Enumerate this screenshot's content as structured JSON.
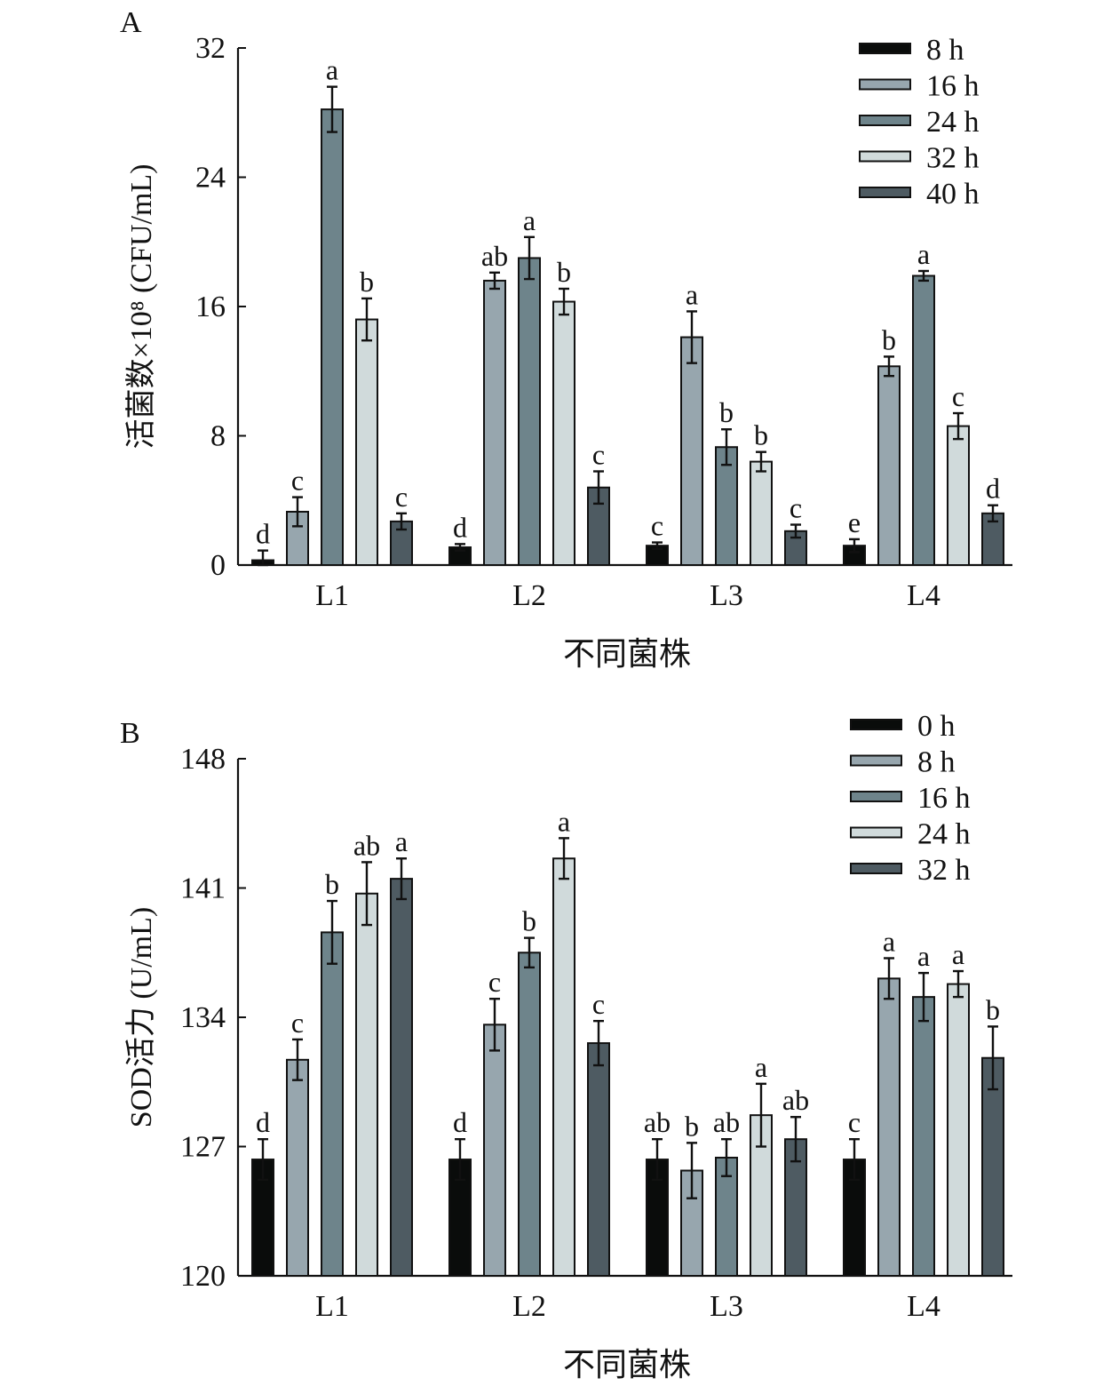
{
  "chart_data": [
    {
      "panel_label": "A",
      "type": "bar",
      "title": "",
      "xlabel": "不同菌株",
      "ylabel": "活菌数×10⁸ (CFU/mL)",
      "ylim": [
        0,
        32
      ],
      "yticks": [
        0,
        8,
        16,
        24,
        32
      ],
      "categories": [
        "L1",
        "L2",
        "L3",
        "L4"
      ],
      "legend_position": "top-right",
      "series": [
        {
          "name": "8 h",
          "color": "#0a0c0b",
          "values": [
            0.3,
            1.1,
            1.2,
            1.2
          ],
          "errors": [
            0.6,
            0.2,
            0.2,
            0.4
          ],
          "letters": [
            "d",
            "d",
            "c",
            "e"
          ]
        },
        {
          "name": "16 h",
          "color": "#97a6ae",
          "values": [
            3.3,
            17.6,
            14.1,
            12.3
          ],
          "errors": [
            0.9,
            0.5,
            1.6,
            0.6
          ],
          "letters": [
            "c",
            "ab",
            "a",
            "b"
          ]
        },
        {
          "name": "24 h",
          "color": "#6e848b",
          "values": [
            28.2,
            19.0,
            7.3,
            17.9
          ],
          "errors": [
            1.4,
            1.3,
            1.1,
            0.3
          ],
          "letters": [
            "a",
            "a",
            "b",
            "a"
          ]
        },
        {
          "name": "32 h",
          "color": "#d0dadb",
          "values": [
            15.2,
            16.3,
            6.4,
            8.6
          ],
          "errors": [
            1.3,
            0.8,
            0.6,
            0.8
          ],
          "letters": [
            "b",
            "b",
            "b",
            "c"
          ]
        },
        {
          "name": "40 h",
          "color": "#4e5b62",
          "values": [
            2.7,
            4.8,
            2.1,
            3.2
          ],
          "errors": [
            0.5,
            1.0,
            0.4,
            0.5
          ],
          "letters": [
            "c",
            "c",
            "c",
            "d"
          ]
        }
      ]
    },
    {
      "panel_label": "B",
      "type": "bar",
      "title": "",
      "xlabel": "不同菌株",
      "ylabel": "SOD活力 (U/mL)",
      "ylim": [
        120,
        148
      ],
      "yticks": [
        120,
        127,
        134,
        141,
        148
      ],
      "categories": [
        "L1",
        "L2",
        "L3",
        "L4"
      ],
      "legend_position": "top-right",
      "series": [
        {
          "name": "0 h",
          "color": "#0a0c0b",
          "values": [
            126.3,
            126.3,
            126.3,
            126.3
          ],
          "errors": [
            1.1,
            1.1,
            1.1,
            1.1
          ],
          "letters": [
            "d",
            "d",
            "ab",
            "c"
          ]
        },
        {
          "name": "8 h",
          "color": "#97a6ae",
          "values": [
            131.7,
            133.6,
            125.7,
            136.1
          ],
          "errors": [
            1.1,
            1.4,
            1.5,
            1.1
          ],
          "letters": [
            "c",
            "c",
            "b",
            "a"
          ]
        },
        {
          "name": "16 h",
          "color": "#6e848b",
          "values": [
            138.6,
            137.5,
            126.4,
            135.1
          ],
          "errors": [
            1.7,
            0.8,
            1.0,
            1.3
          ],
          "letters": [
            "b",
            "b",
            "ab",
            "a"
          ]
        },
        {
          "name": "24 h",
          "color": "#d0dadb",
          "values": [
            140.7,
            142.6,
            128.7,
            135.8
          ],
          "errors": [
            1.7,
            1.1,
            1.7,
            0.7
          ],
          "letters": [
            "ab",
            "a",
            "a",
            "a"
          ]
        },
        {
          "name": "32 h",
          "color": "#4e5b62",
          "values": [
            141.5,
            132.6,
            127.4,
            131.8
          ],
          "errors": [
            1.1,
            1.2,
            1.2,
            1.7
          ],
          "letters": [
            "a",
            "c",
            "ab",
            "b"
          ]
        }
      ]
    }
  ]
}
